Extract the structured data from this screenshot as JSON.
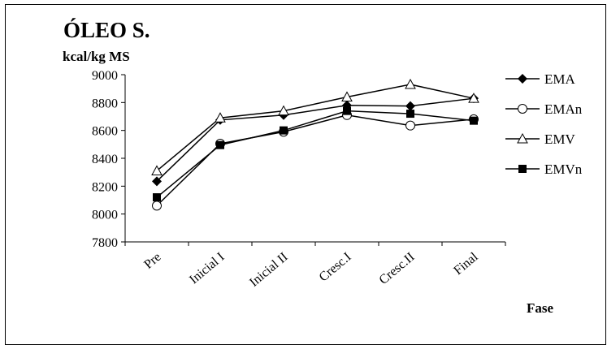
{
  "chart_data": {
    "type": "line",
    "title": "ÓLEO S.",
    "ylabel": "kcal/kg MS",
    "xlabel": "Fase",
    "categories": [
      "Pre",
      "Inicial I",
      "Inicial II",
      "Cresc.I",
      "Cresc.II",
      "Final"
    ],
    "ylim": [
      7800,
      9000
    ],
    "yticks": [
      7800,
      8000,
      8200,
      8400,
      8600,
      8800,
      9000
    ],
    "legend_position": "right",
    "grid": false,
    "series": [
      {
        "name": "EMA",
        "marker": "diamond",
        "values": [
          8235,
          8675,
          8710,
          8780,
          8775,
          8830
        ]
      },
      {
        "name": "EMAn",
        "marker": "circle-open",
        "values": [
          8060,
          8505,
          8590,
          8710,
          8635,
          8680
        ]
      },
      {
        "name": "EMV",
        "marker": "triangle-open",
        "values": [
          8310,
          8690,
          8740,
          8840,
          8930,
          8830
        ]
      },
      {
        "name": "EMVn",
        "marker": "square",
        "values": [
          8120,
          8495,
          8600,
          8740,
          8720,
          8670
        ]
      }
    ]
  }
}
